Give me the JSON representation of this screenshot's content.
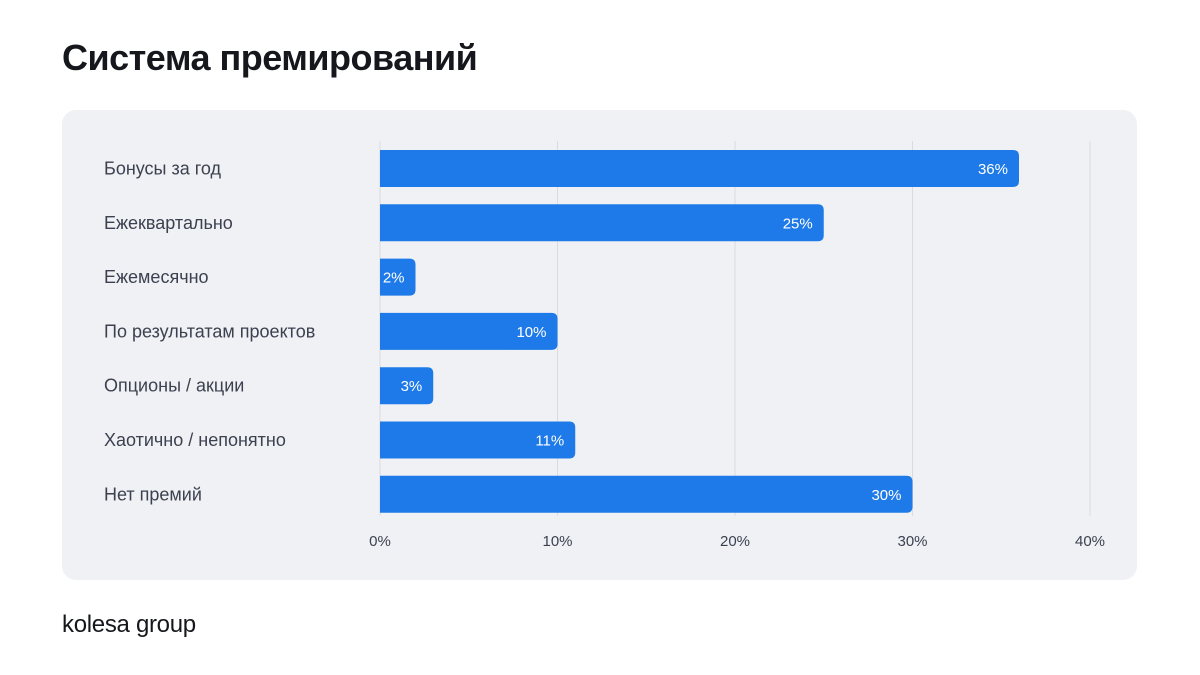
{
  "page": {
    "title": "Система премирований",
    "logo_text": "kolesa group"
  },
  "colors": {
    "bar": "#1e7ae8",
    "panel_background": "#f0f1f5",
    "gridline": "#d9dbe1",
    "label_text": "#3c4150",
    "value_text": "#ffffff"
  },
  "chart_data": {
    "type": "bar",
    "orientation": "horizontal",
    "title": "",
    "xlabel": "",
    "ylabel": "",
    "categories": [
      "Бонусы за год",
      "Ежеквартально",
      "Ежемесячно",
      "По результатам проектов",
      "Опционы / акции",
      "Хаотично / непонятно",
      "Нет премий"
    ],
    "values": [
      36,
      25,
      2,
      10,
      3,
      11,
      30
    ],
    "value_labels": [
      "36%",
      "25%",
      "2%",
      "10%",
      "3%",
      "11%",
      "30%"
    ],
    "xlim": [
      0,
      40
    ],
    "xticks": [
      0,
      10,
      20,
      30,
      40
    ],
    "xtick_labels": [
      "0%",
      "10%",
      "20%",
      "30%",
      "40%"
    ],
    "grid": "vertical",
    "legend": "none"
  }
}
